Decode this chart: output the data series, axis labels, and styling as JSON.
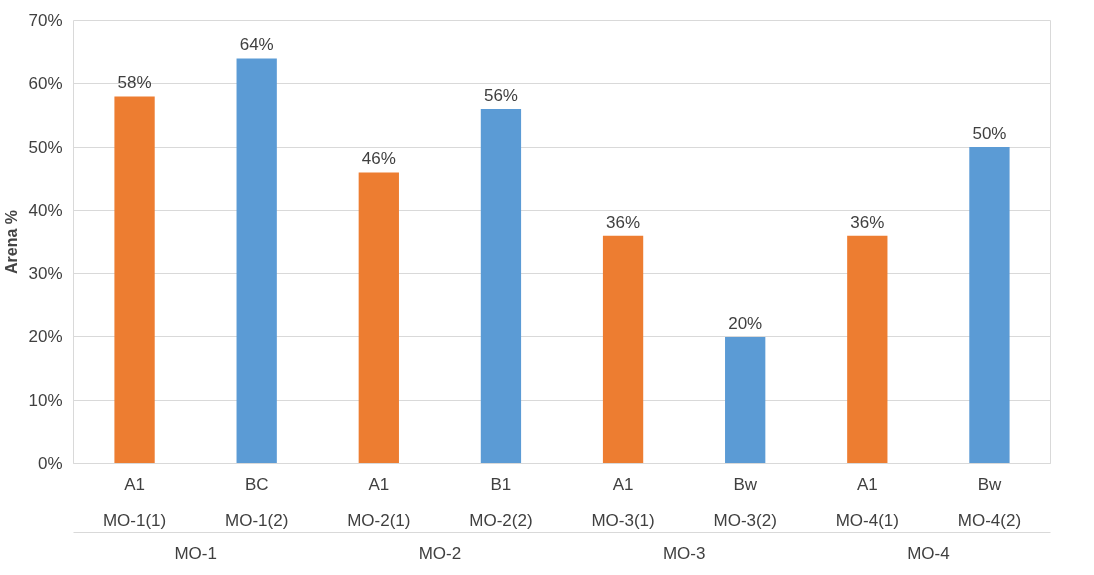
{
  "chart_data": {
    "type": "bar",
    "ylabel": "Arena %",
    "categories": [
      "A1\nMO-1(1)",
      "BC\nMO-1(2)",
      "A1\nMO-2(1)",
      "B1\nMO-2(2)",
      "A1\nMO-3(1)",
      "Bw\nMO-3(2)",
      "A1\nMO-4(1)",
      "Bw\nMO-4(2)"
    ],
    "values": [
      58,
      64,
      46,
      56,
      36,
      20,
      36,
      50
    ],
    "colors": [
      "#ed7d31",
      "#5b9bd5",
      "#ed7d31",
      "#5b9bd5",
      "#ed7d31",
      "#5b9bd5",
      "#ed7d31",
      "#5b9bd5"
    ],
    "value_labels": [
      "58%",
      "64%",
      "46%",
      "56%",
      "36%",
      "20%",
      "36%",
      "50%"
    ],
    "annotations": [
      "MO-1",
      "MO-2",
      "MO-3",
      "MO-4"
    ],
    "ylim": [
      0,
      70
    ],
    "yticks": [
      {
        "value": 0,
        "label": "0%"
      },
      {
        "value": 10,
        "label": "10%"
      },
      {
        "value": 20,
        "label": "20%"
      },
      {
        "value": 30,
        "label": "30%"
      },
      {
        "value": 40,
        "label": "40%"
      },
      {
        "value": 50,
        "label": "50%"
      },
      {
        "value": 60,
        "label": "60%"
      },
      {
        "value": 70,
        "label": "70%"
      }
    ],
    "grid": "y"
  }
}
